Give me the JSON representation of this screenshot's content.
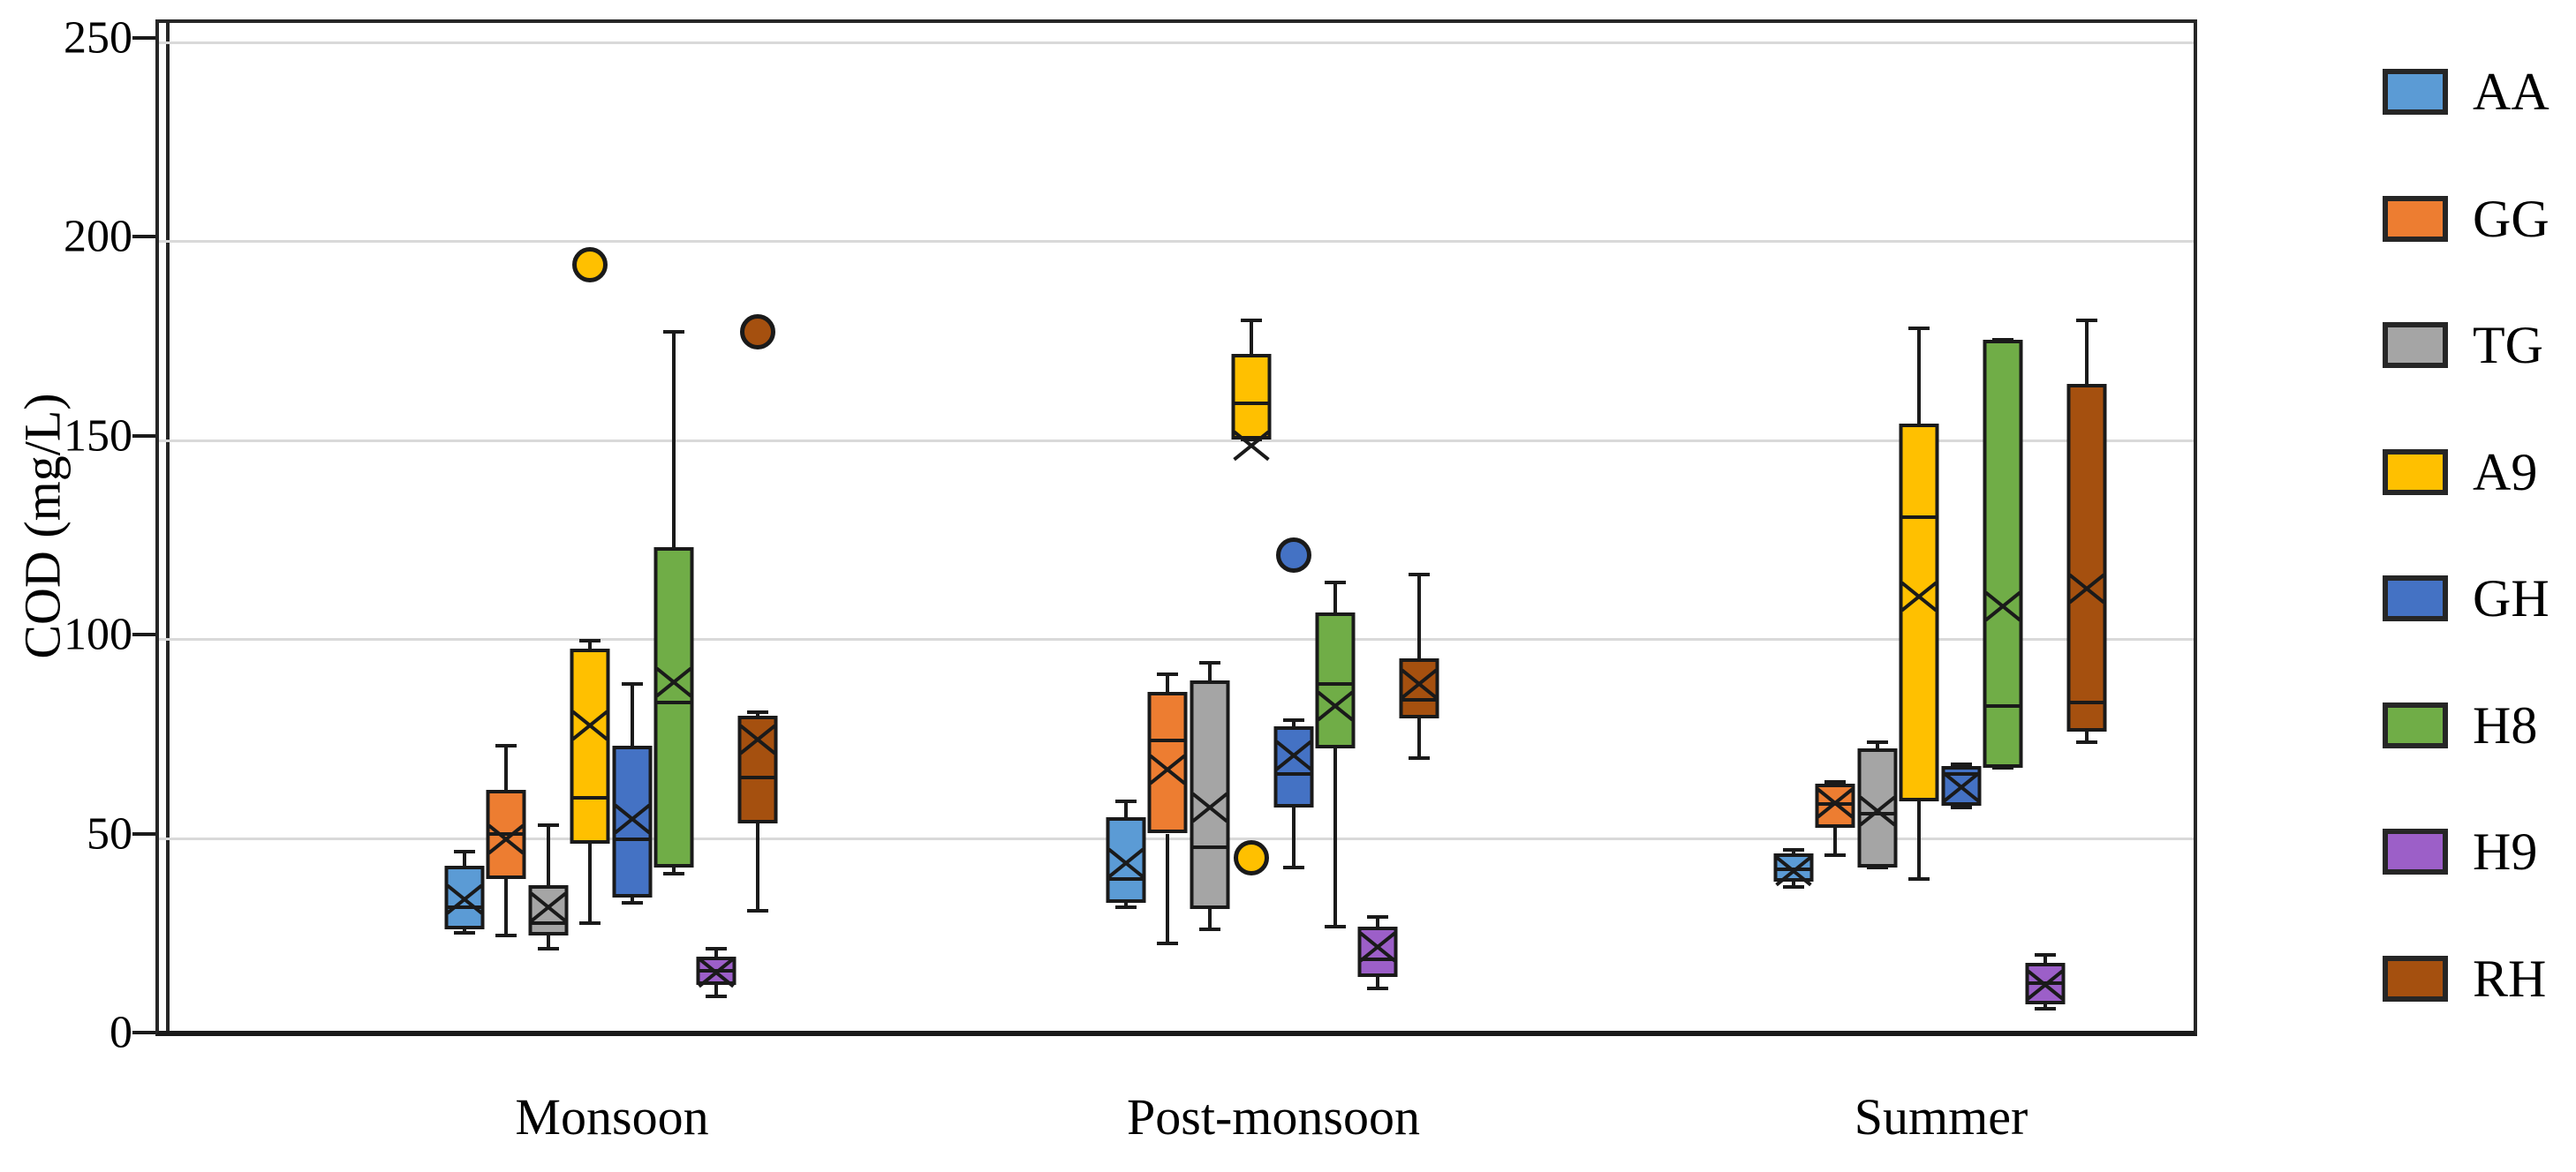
{
  "chart_data": {
    "type": "box",
    "title": "",
    "ylabel": "COD (mg/L)",
    "ylim": [
      0,
      250
    ],
    "yticks": [
      0,
      50,
      100,
      150,
      200,
      250
    ],
    "grid": "horizontal",
    "legend_position": "right",
    "categories": [
      "Monsoon",
      "Post-monsoon",
      "Summer"
    ],
    "series": [
      {
        "name": "AA",
        "color": "#5B9BD5",
        "boxes": [
          {
            "category": "Monsoon",
            "min": 25,
            "q1": 26,
            "median": 31.5,
            "mean": 34,
            "q3": 42,
            "max": 45.5,
            "outliers": []
          },
          {
            "category": "Post-monsoon",
            "min": 31.5,
            "q1": 32.5,
            "median": 38.5,
            "mean": 43,
            "q3": 54,
            "max": 58,
            "outliers": []
          },
          {
            "category": "Summer",
            "min": 36.5,
            "q1": 38,
            "median": 41,
            "mean": 41,
            "q3": 45,
            "max": 46,
            "outliers": []
          }
        ]
      },
      {
        "name": "GG",
        "color": "#ED7D31",
        "boxes": [
          {
            "category": "Monsoon",
            "min": 24.5,
            "q1": 38.5,
            "median": 50,
            "mean": 49,
            "q3": 61,
            "max": 72,
            "outliers": []
          },
          {
            "category": "Post-monsoon",
            "min": 22.5,
            "q1": 50,
            "median": 73.5,
            "mean": 66.5,
            "q3": 85.5,
            "max": 90,
            "outliers": []
          },
          {
            "category": "Summer",
            "min": 44.5,
            "q1": 51.5,
            "median": 57.5,
            "mean": 58,
            "q3": 62.5,
            "max": 63,
            "outliers": []
          }
        ]
      },
      {
        "name": "TG",
        "color": "#A5A5A5",
        "boxes": [
          {
            "category": "Monsoon",
            "min": 21,
            "q1": 24.5,
            "median": 27.5,
            "mean": 32,
            "q3": 37,
            "max": 52,
            "outliers": []
          },
          {
            "category": "Post-monsoon",
            "min": 26,
            "q1": 31,
            "median": 46.5,
            "mean": 57,
            "q3": 88.5,
            "max": 93,
            "outliers": []
          },
          {
            "category": "Summer",
            "min": 41.5,
            "q1": 41.5,
            "median": 55,
            "mean": 56,
            "q3": 71.5,
            "max": 73,
            "outliers": []
          }
        ]
      },
      {
        "name": "A9",
        "color": "#FFC000",
        "boxes": [
          {
            "category": "Monsoon",
            "min": 27.5,
            "q1": 47.5,
            "median": 59,
            "mean": 77.5,
            "q3": 96.5,
            "max": 98.5,
            "outliers": [
              193
            ]
          },
          {
            "category": "Post-monsoon",
            "min": 149,
            "q1": 149,
            "median": 158,
            "mean": 148,
            "q3": 170.5,
            "max": 179,
            "outliers": [
              44
            ]
          },
          {
            "category": "Summer",
            "min": 38.5,
            "q1": 58,
            "median": 129.5,
            "mean": 110,
            "q3": 153,
            "max": 177,
            "outliers": []
          }
        ]
      },
      {
        "name": "GH",
        "color": "#4472C4",
        "boxes": [
          {
            "category": "Monsoon",
            "min": 32.5,
            "q1": 34,
            "median": 48.5,
            "mean": 54,
            "q3": 72,
            "max": 87.5,
            "outliers": []
          },
          {
            "category": "Post-monsoon",
            "min": 41.5,
            "q1": 56.5,
            "median": 65,
            "mean": 70,
            "q3": 77,
            "max": 78.5,
            "outliers": [
              120
            ]
          },
          {
            "category": "Summer",
            "min": 56.5,
            "q1": 57,
            "median": 65,
            "mean": 62,
            "q3": 67,
            "max": 67.5,
            "outliers": []
          }
        ]
      },
      {
        "name": "H8",
        "color": "#70AD47",
        "boxes": [
          {
            "category": "Monsoon",
            "min": 40,
            "q1": 41.5,
            "median": 83,
            "mean": 88.5,
            "q3": 122,
            "max": 176,
            "outliers": []
          },
          {
            "category": "Post-monsoon",
            "min": 26.5,
            "q1": 71.5,
            "median": 87.5,
            "mean": 82.5,
            "q3": 105.5,
            "max": 113,
            "outliers": []
          },
          {
            "category": "Summer",
            "min": 66.5,
            "q1": 66.5,
            "median": 82,
            "mean": 107.5,
            "q3": 174,
            "max": 174,
            "outliers": []
          }
        ]
      },
      {
        "name": "H9",
        "color": "#9C5FC8",
        "boxes": [
          {
            "category": "Monsoon",
            "min": 9,
            "q1": 12,
            "median": 15.5,
            "mean": 15.5,
            "q3": 19,
            "max": 21,
            "outliers": []
          },
          {
            "category": "Post-monsoon",
            "min": 11,
            "q1": 14,
            "median": 18.5,
            "mean": 22,
            "q3": 26.5,
            "max": 29,
            "outliers": []
          },
          {
            "category": "Summer",
            "min": 6,
            "q1": 7,
            "median": 12.5,
            "mean": 12.5,
            "q3": 17.5,
            "max": 19.5,
            "outliers": []
          }
        ]
      },
      {
        "name": "RH",
        "color": "#A5500F",
        "boxes": [
          {
            "category": "Monsoon",
            "min": 30.5,
            "q1": 52.5,
            "median": 64,
            "mean": 74,
            "q3": 79.5,
            "max": 80.5,
            "outliers": [
              176
            ]
          },
          {
            "category": "Post-monsoon",
            "min": 69,
            "q1": 79,
            "median": 83.5,
            "mean": 88,
            "q3": 94,
            "max": 115,
            "outliers": []
          },
          {
            "category": "Summer",
            "min": 73,
            "q1": 75.5,
            "median": 83,
            "mean": 112,
            "q3": 163,
            "max": 179,
            "outliers": []
          }
        ]
      }
    ],
    "legend_entries": [
      "AA",
      "GG",
      "TG",
      "A9",
      "GH",
      "H8",
      "H9",
      "RH"
    ]
  }
}
